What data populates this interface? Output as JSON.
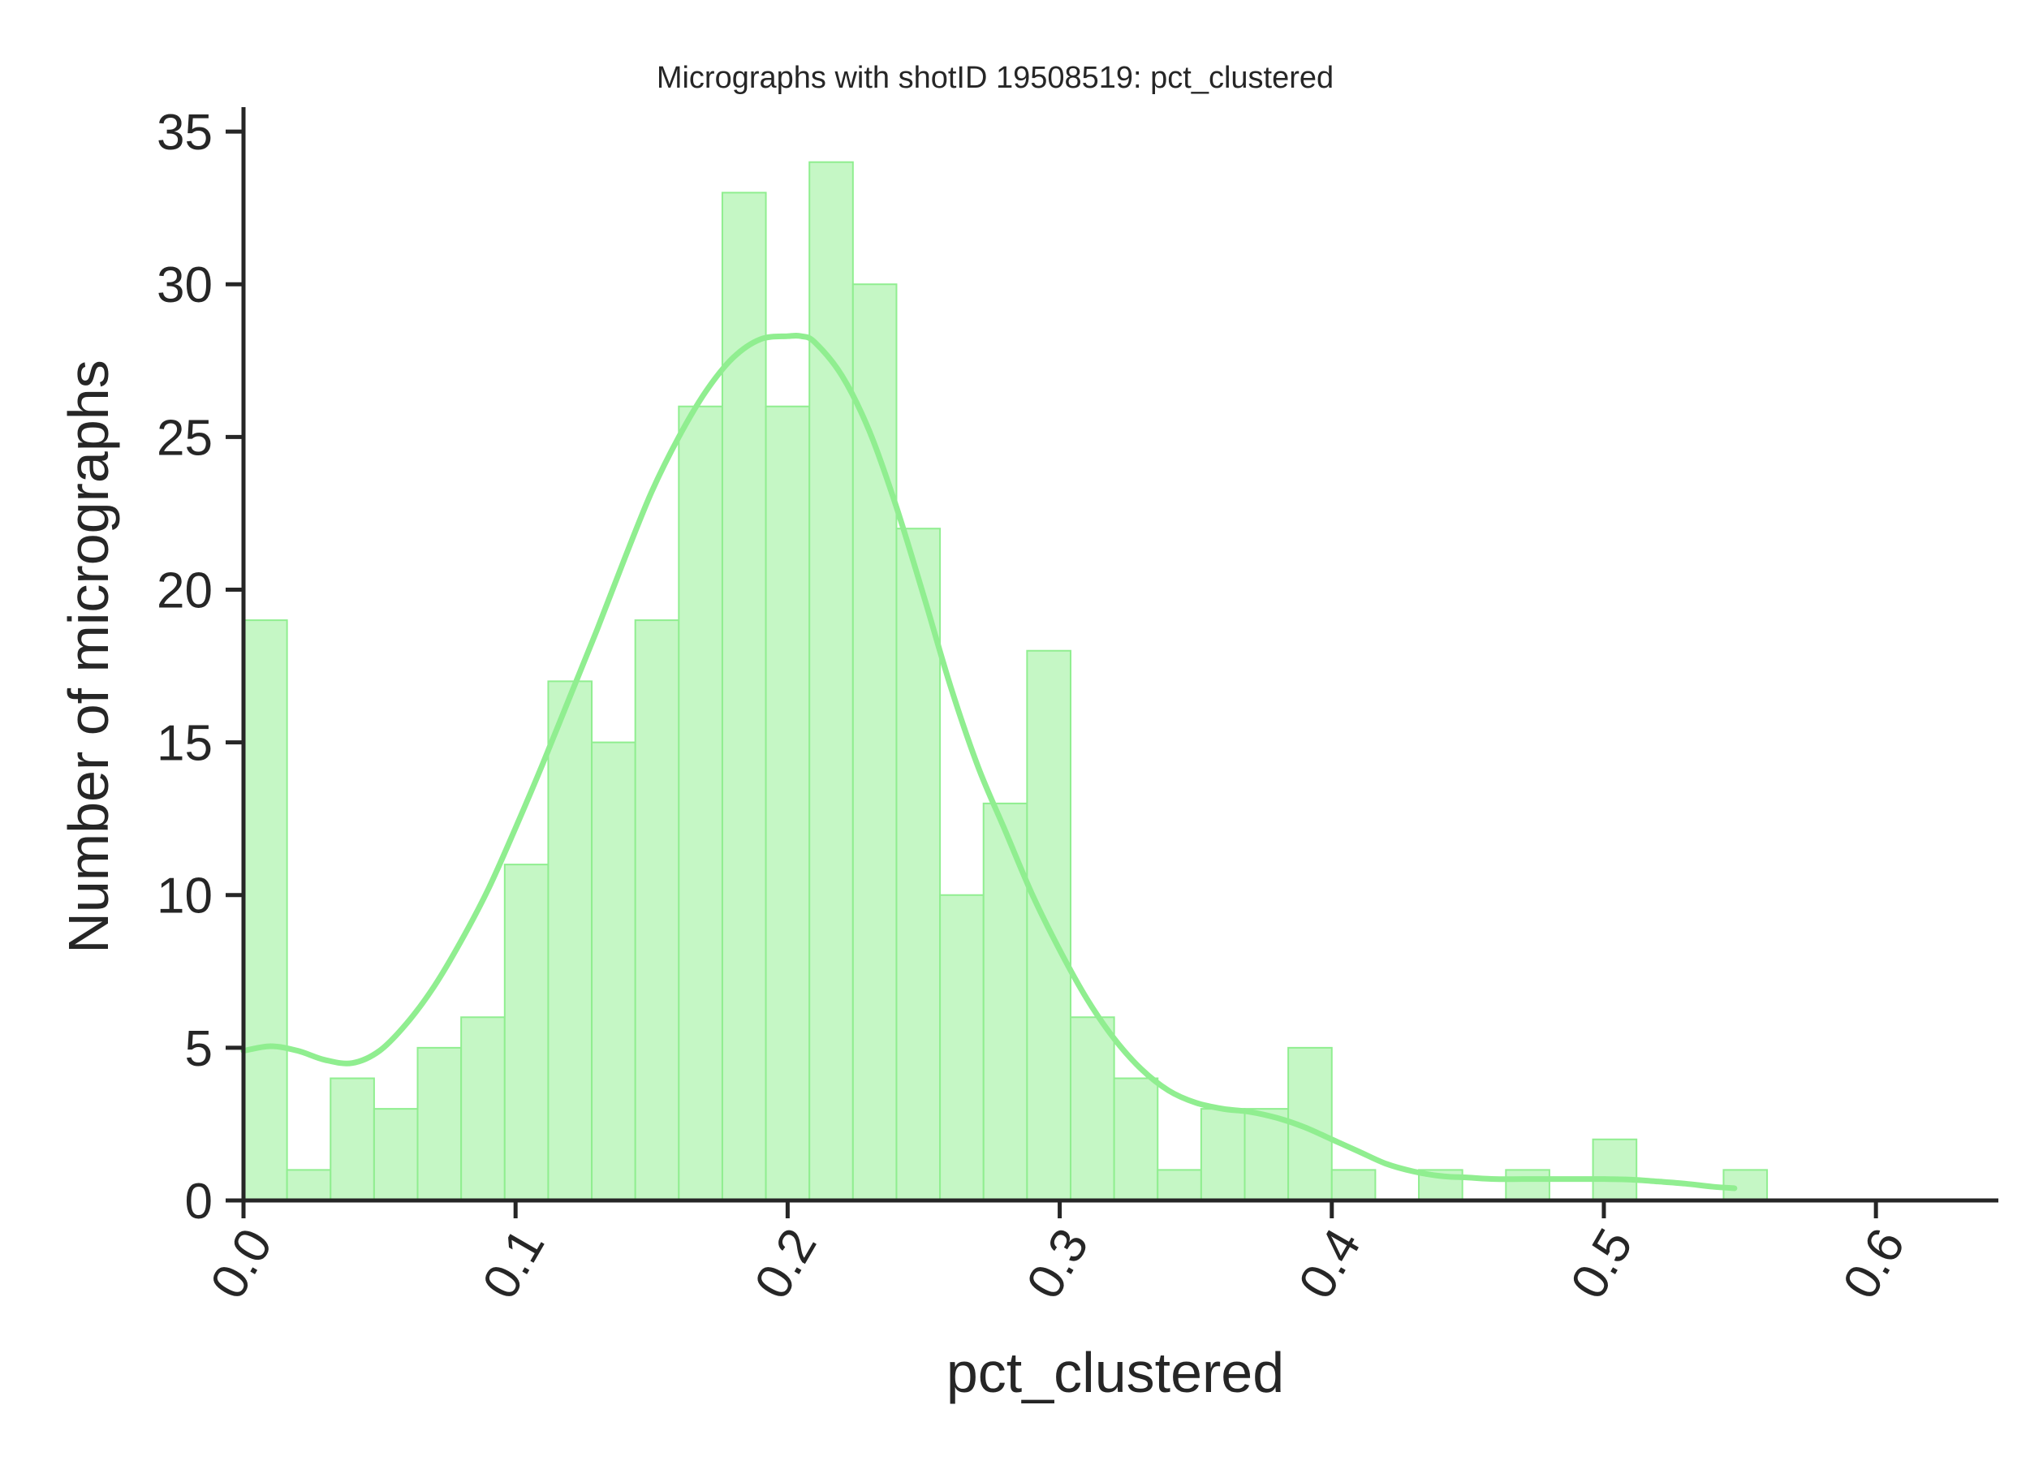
{
  "chart_data": {
    "type": "histogram",
    "title": "Micrographs with shotID 19508519: pct_clustered",
    "xlabel": "pct_clustered",
    "ylabel": "Number of micrographs",
    "xlim": [
      0.0,
      0.645
    ],
    "ylim": [
      0,
      35.8
    ],
    "x_ticks": [
      0.0,
      0.1,
      0.2,
      0.3,
      0.4,
      0.5,
      0.6
    ],
    "x_tick_labels": [
      "0.0",
      "0.1",
      "0.2",
      "0.3",
      "0.4",
      "0.5",
      "0.6"
    ],
    "y_ticks": [
      0,
      5,
      10,
      15,
      20,
      25,
      30,
      35
    ],
    "y_tick_labels": [
      "0",
      "5",
      "10",
      "15",
      "20",
      "25",
      "30",
      "35"
    ],
    "bin_start": 0.0,
    "bin_width": 0.016,
    "counts": [
      19,
      1,
      4,
      3,
      5,
      6,
      11,
      17,
      15,
      19,
      26,
      33,
      26,
      34,
      30,
      22,
      10,
      13,
      18,
      6,
      4,
      1,
      3,
      3,
      5,
      1,
      0,
      1,
      0,
      1,
      0,
      2,
      0,
      0,
      1
    ],
    "kde": {
      "x": [
        0.0,
        0.01,
        0.02,
        0.03,
        0.04,
        0.05,
        0.06,
        0.07,
        0.08,
        0.09,
        0.1,
        0.11,
        0.12,
        0.13,
        0.14,
        0.15,
        0.16,
        0.17,
        0.18,
        0.19,
        0.2,
        0.205,
        0.21,
        0.22,
        0.23,
        0.24,
        0.25,
        0.26,
        0.27,
        0.28,
        0.29,
        0.3,
        0.31,
        0.32,
        0.33,
        0.34,
        0.35,
        0.36,
        0.37,
        0.38,
        0.39,
        0.4,
        0.41,
        0.42,
        0.43,
        0.44,
        0.45,
        0.46,
        0.47,
        0.48,
        0.49,
        0.5,
        0.51,
        0.52,
        0.53,
        0.54,
        0.548
      ],
      "y": [
        4.9,
        5.05,
        4.9,
        4.6,
        4.5,
        4.9,
        5.8,
        7.0,
        8.5,
        10.2,
        12.2,
        14.3,
        16.5,
        18.7,
        21.0,
        23.2,
        25.0,
        26.5,
        27.6,
        28.2,
        28.3,
        28.3,
        28.1,
        27.0,
        25.2,
        22.7,
        19.8,
        16.8,
        14.2,
        12.1,
        10.0,
        8.2,
        6.6,
        5.3,
        4.3,
        3.6,
        3.2,
        3.0,
        2.9,
        2.7,
        2.4,
        2.0,
        1.6,
        1.2,
        0.95,
        0.8,
        0.75,
        0.7,
        0.7,
        0.7,
        0.7,
        0.7,
        0.68,
        0.62,
        0.55,
        0.45,
        0.4
      ]
    },
    "bar_fill": "#c5f7c5",
    "bar_edge": "#90ee90",
    "kde_color": "#90ee90",
    "axis_color": "#262626",
    "grid": false,
    "legend": "none"
  }
}
